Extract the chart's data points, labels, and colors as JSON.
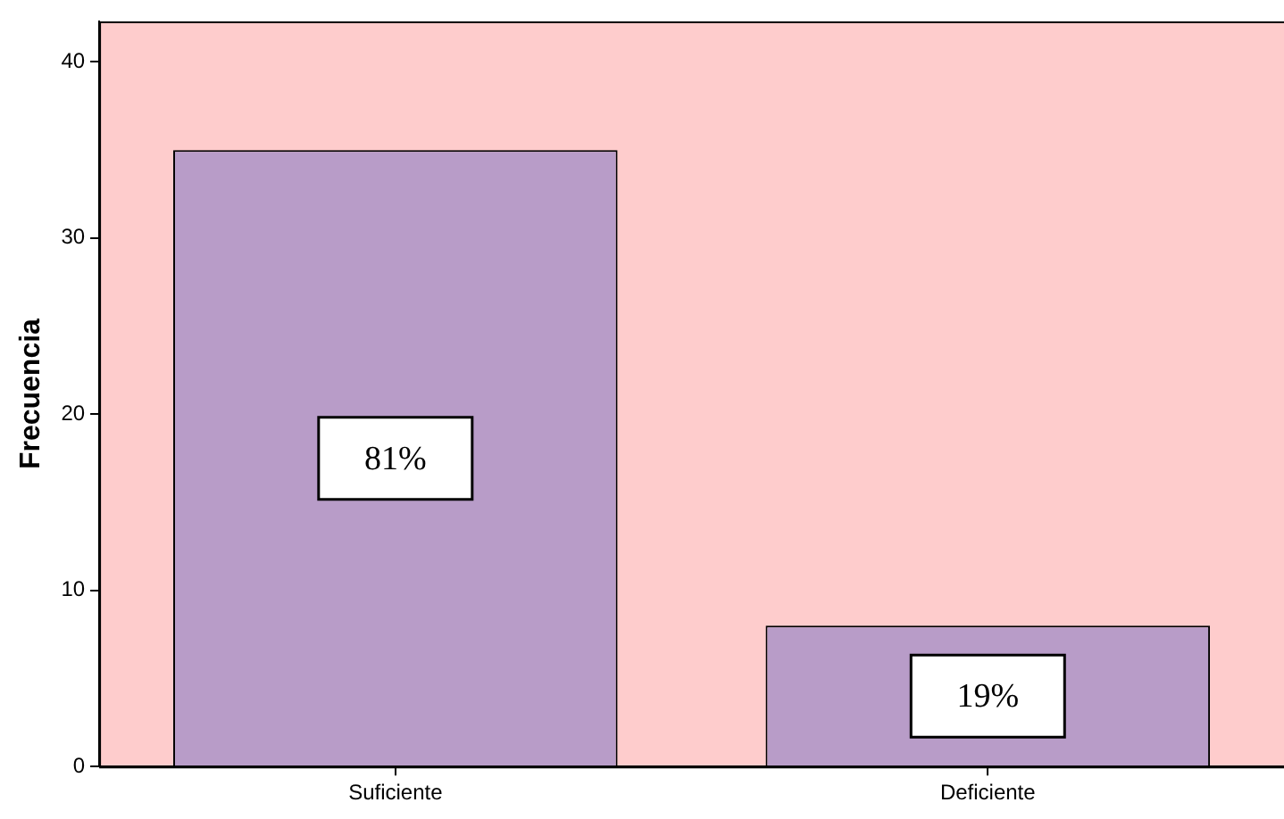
{
  "chart_data": {
    "type": "bar",
    "ylabel": "Frecuencia",
    "categories": [
      "Suficiente",
      "Deficiente"
    ],
    "values": [
      35,
      8
    ],
    "color": "#b89cc8",
    "ylim": [
      0,
      42.3
    ],
    "yticks": [
      0,
      10,
      20,
      30,
      40
    ],
    "grid": false,
    "legend": false,
    "annotations": [
      "81%",
      "19%"
    ]
  }
}
